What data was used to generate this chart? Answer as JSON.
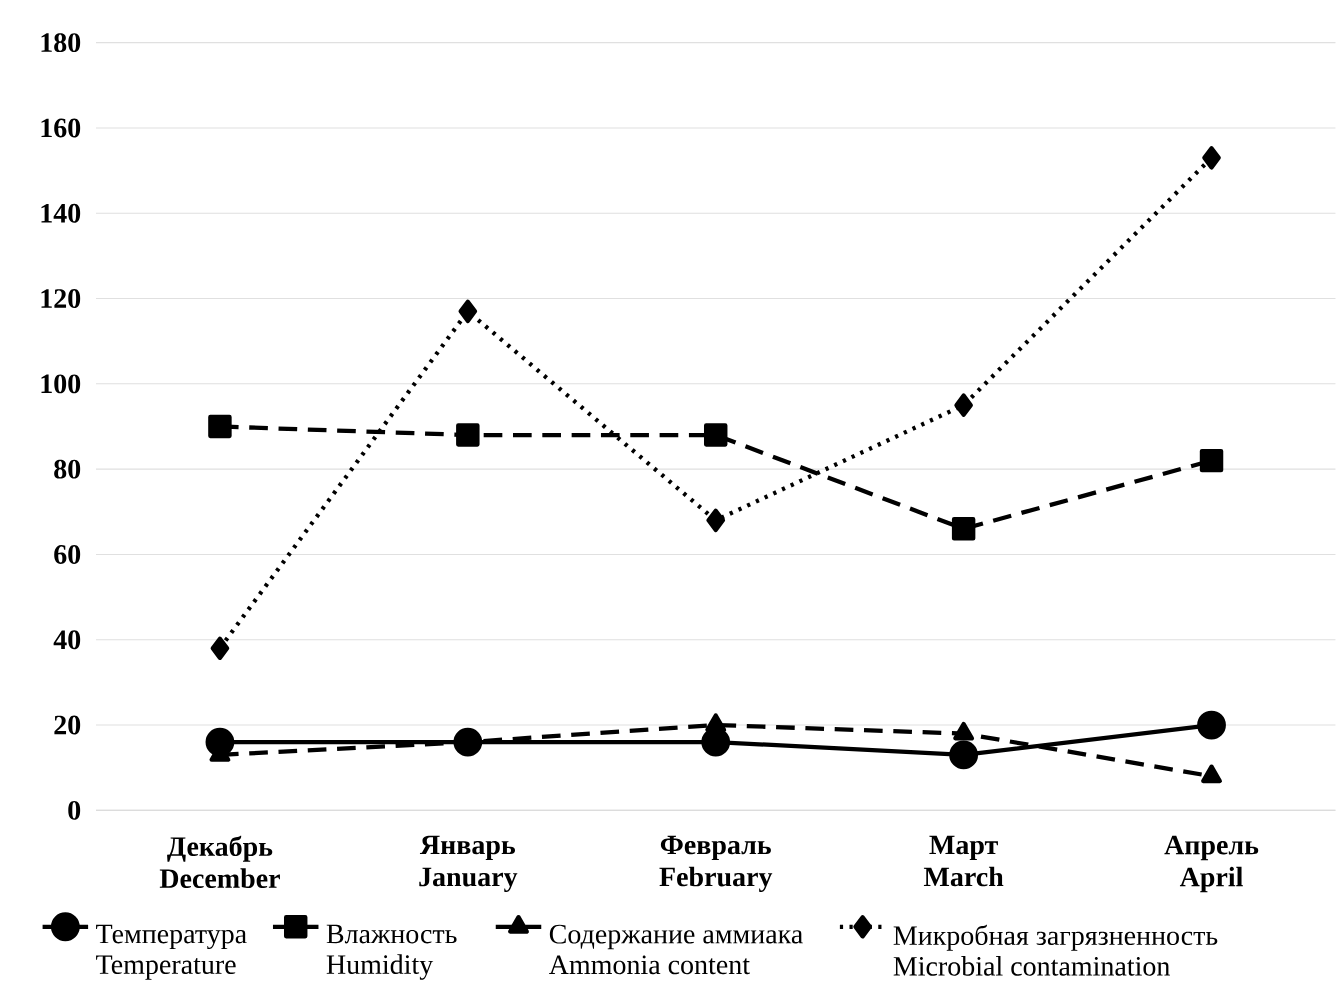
{
  "chart_data": {
    "type": "line",
    "categories": [
      "Декабрь December",
      "Январь January",
      "Февраль February",
      "Март March",
      "Апрель April"
    ],
    "series": [
      {
        "name": "Температура Temperature",
        "color": "#000000",
        "marker": "circle",
        "line_style": "solid",
        "values": [
          16,
          16,
          16,
          13,
          20
        ]
      },
      {
        "name": "Влажность Humidity",
        "color": "#000000",
        "marker": "square",
        "line_style": "dashed",
        "values": [
          90,
          88,
          88,
          66,
          82
        ]
      },
      {
        "name": "Содержание аммиака Ammonia content",
        "color": "#000000",
        "marker": "triangle",
        "line_style": "dashed",
        "values": [
          13,
          16,
          20,
          18,
          8
        ]
      },
      {
        "name": "Микробная загрязненность Microbial contamination",
        "color": "#000000",
        "marker": "diamond",
        "line_style": "dotted",
        "values": [
          38,
          117,
          68,
          95,
          153
        ]
      }
    ],
    "ylim": [
      0,
      180
    ],
    "yticks": [
      0,
      20,
      40,
      60,
      80,
      100,
      120,
      140,
      160,
      180
    ],
    "grid": "y",
    "legend": "bottom"
  }
}
